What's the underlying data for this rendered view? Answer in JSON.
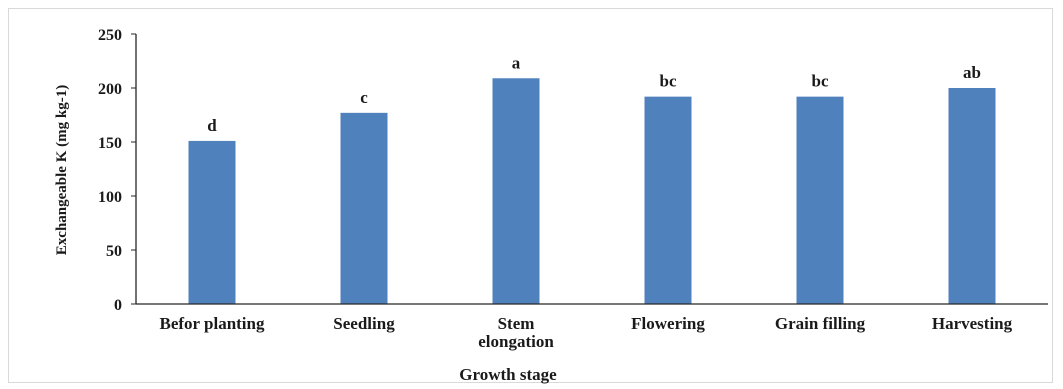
{
  "chart_data": {
    "type": "bar",
    "categories": [
      "Befor planting",
      "Seedling",
      "Stem elongation",
      "Flowering",
      "Grain filling",
      "Harvesting"
    ],
    "category_lines": [
      [
        "Befor planting"
      ],
      [
        "Seedling"
      ],
      [
        "Stem",
        "elongation"
      ],
      [
        "Flowering"
      ],
      [
        "Grain filling"
      ],
      [
        "Harvesting"
      ]
    ],
    "values": [
      151,
      177,
      209,
      192,
      192,
      200
    ],
    "data_labels": [
      "d",
      "c",
      "a",
      "bc",
      "bc",
      "ab"
    ],
    "title": "",
    "xlabel": "Growth stage",
    "ylabel": "Exchangeable K (mg kg-1)",
    "ylim": [
      0,
      250
    ],
    "yticks": [
      0,
      50,
      100,
      150,
      200,
      250
    ],
    "bar_color": "#4f81bd",
    "grid": false,
    "legend": "none"
  }
}
